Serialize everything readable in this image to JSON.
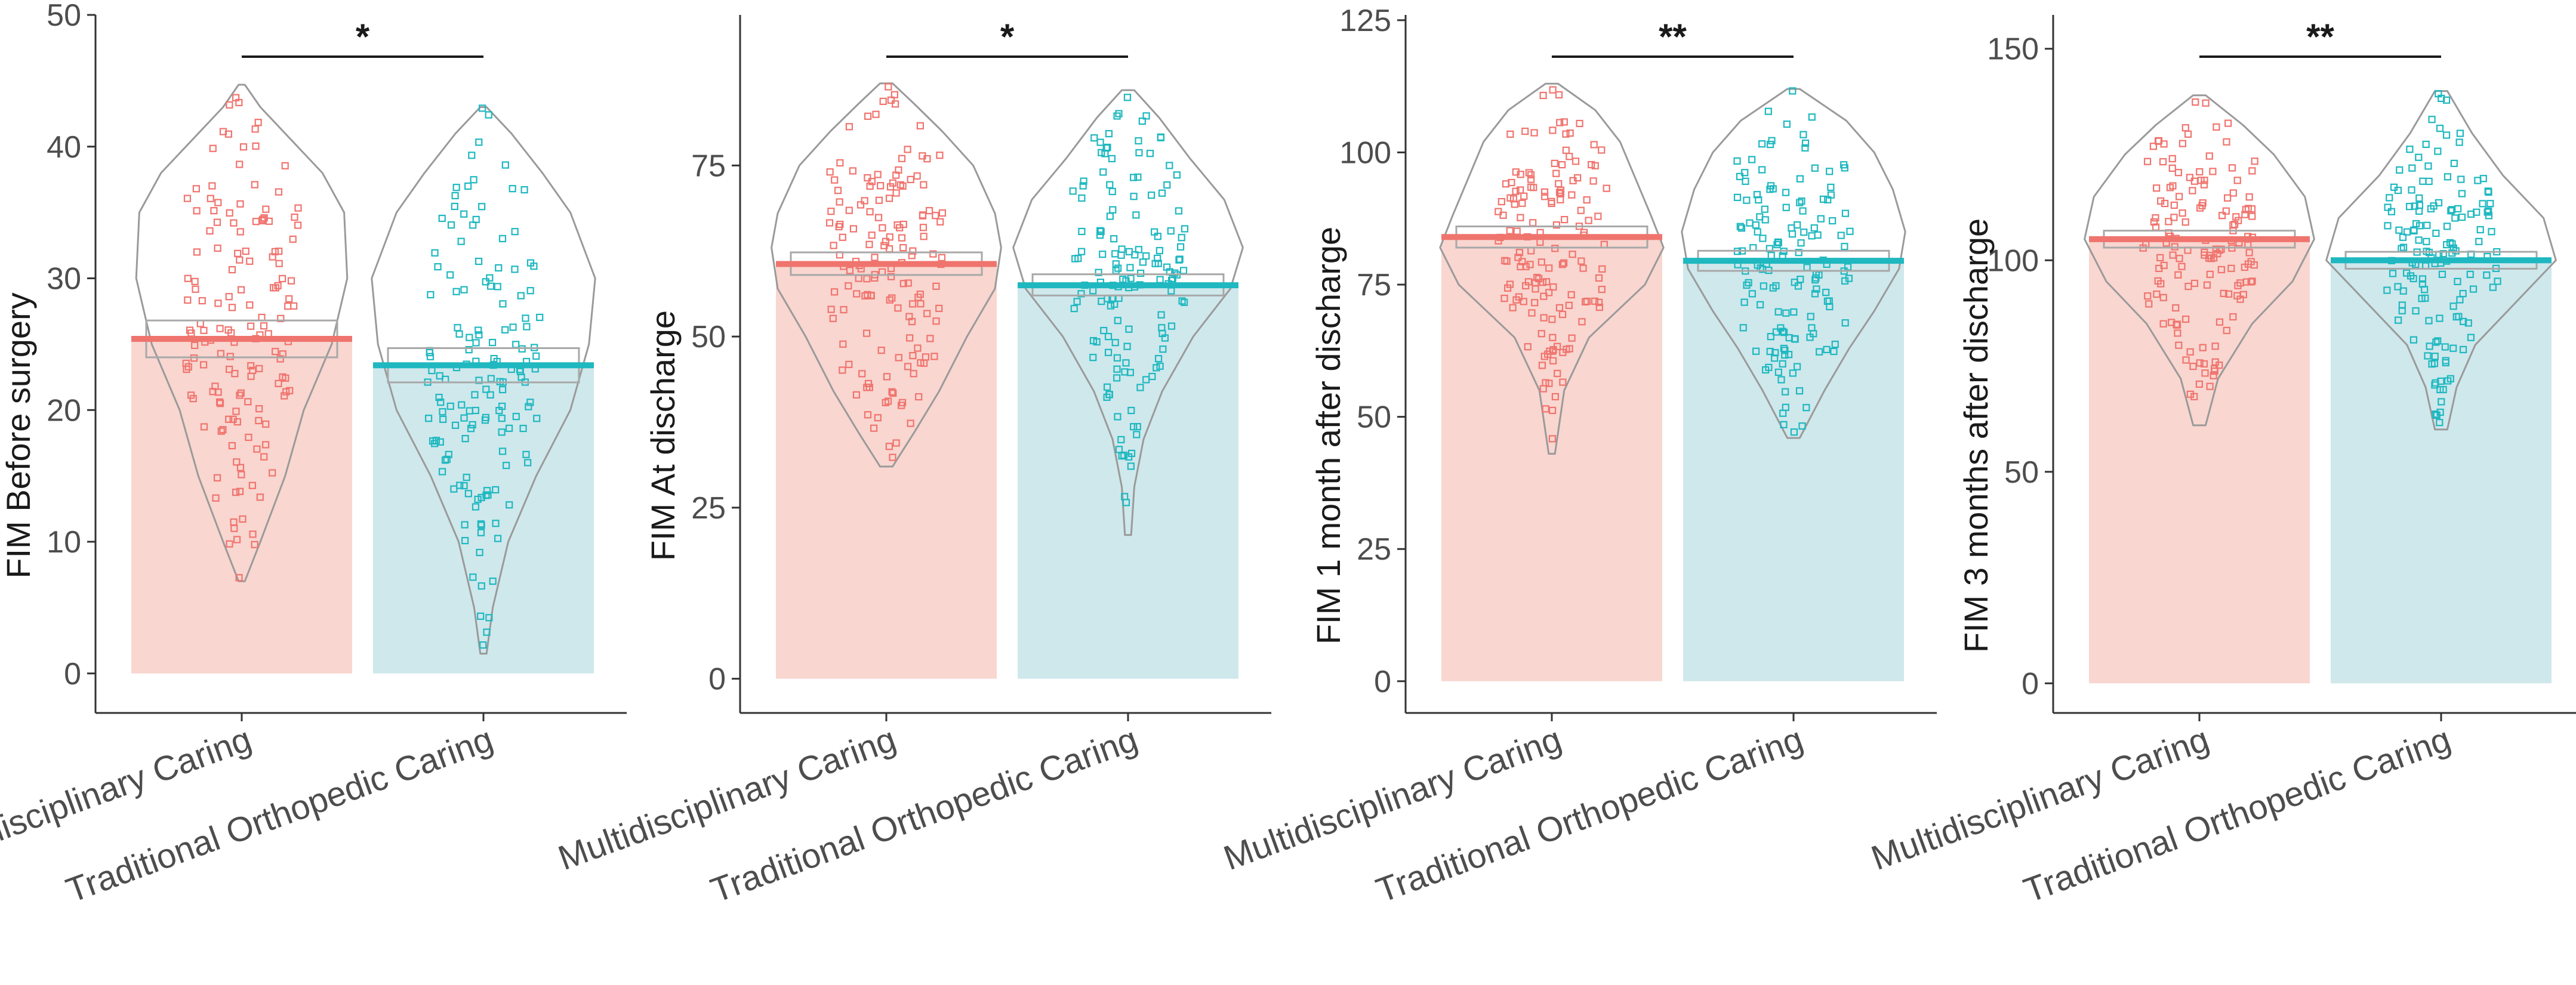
{
  "colors": {
    "group1": "#f0746e",
    "group1_fill": "#f9d6d0",
    "group2": "#1fb8c0",
    "group2_fill": "#cfe8ec",
    "violin": "#9a9a9a",
    "axis": "#333333"
  },
  "chart_data": [
    {
      "type": "bar",
      "ylabel": "FIM Before surgery",
      "categories": [
        "Multidisciplinary Caring",
        "Traditional Orthopedic Caring"
      ],
      "means": [
        25.4,
        23.4
      ],
      "ci_low": [
        24.0,
        22.1
      ],
      "ci_high": [
        26.8,
        24.7
      ],
      "ylim": [
        -3,
        50
      ],
      "yticks": [
        0,
        10,
        20,
        30,
        40,
        50
      ],
      "ytick_labels": [
        "0",
        "10",
        "20",
        "30",
        "40",
        "50"
      ],
      "point_range": [
        [
          7,
          44.7
        ],
        [
          1.5,
          43
        ]
      ],
      "significance": "*",
      "violin": [
        [
          [
            7,
            1
          ],
          [
            10,
            6
          ],
          [
            15,
            14
          ],
          [
            20,
            20
          ],
          [
            25,
            29
          ],
          [
            30,
            34
          ],
          [
            35,
            33
          ],
          [
            38,
            26
          ],
          [
            41,
            14
          ],
          [
            43,
            6
          ],
          [
            44.7,
            1
          ]
        ],
        [
          [
            1.5,
            1
          ],
          [
            5,
            3
          ],
          [
            10,
            8
          ],
          [
            15,
            17
          ],
          [
            20,
            28
          ],
          [
            25,
            34
          ],
          [
            30,
            36
          ],
          [
            35,
            28
          ],
          [
            38,
            19
          ],
          [
            41,
            9
          ],
          [
            43,
            1
          ]
        ]
      ]
    },
    {
      "type": "bar",
      "ylabel": "FIM At discharge",
      "categories": [
        "Multidisciplinary Caring",
        "Traditional Orthopedic Caring"
      ],
      "means": [
        60.6,
        57.5
      ],
      "ci_low": [
        59.0,
        56.0
      ],
      "ci_high": [
        62.3,
        59.1
      ],
      "ylim": [
        -5,
        97
      ],
      "yticks": [
        0,
        25,
        50,
        75
      ],
      "ytick_labels": [
        "0",
        "25",
        "50",
        "75"
      ],
      "point_range": [
        [
          31,
          87
        ],
        [
          21,
          86
        ]
      ],
      "significance": "*",
      "violin": [
        [
          [
            31,
            2
          ],
          [
            36,
            9
          ],
          [
            42,
            17
          ],
          [
            50,
            26
          ],
          [
            57,
            35
          ],
          [
            63,
            37
          ],
          [
            68,
            35
          ],
          [
            75,
            28
          ],
          [
            80,
            18
          ],
          [
            84,
            9
          ],
          [
            87,
            2
          ]
        ],
        [
          [
            21,
            1
          ],
          [
            28,
            2
          ],
          [
            35,
            5
          ],
          [
            42,
            11
          ],
          [
            50,
            21
          ],
          [
            57,
            33
          ],
          [
            63,
            37
          ],
          [
            70,
            31
          ],
          [
            76,
            20
          ],
          [
            82,
            10
          ],
          [
            86,
            2
          ]
        ]
      ]
    },
    {
      "type": "bar",
      "ylabel": "FIM 1 month after discharge",
      "categories": [
        "Multidisciplinary Caring",
        "Traditional Orthopedic Caring"
      ],
      "means": [
        84.0,
        79.5
      ],
      "ci_low": [
        82.0,
        77.6
      ],
      "ci_high": [
        86.0,
        81.4
      ],
      "ylim": [
        -6,
        126
      ],
      "yticks": [
        0,
        25,
        50,
        75,
        100,
        125
      ],
      "ytick_labels": [
        "0",
        "25",
        "50",
        "75",
        "100",
        "125"
      ],
      "point_range": [
        [
          43,
          113
        ],
        [
          46,
          112
        ]
      ],
      "significance": "**",
      "violin": [
        [
          [
            43,
            1
          ],
          [
            55,
            4
          ],
          [
            65,
            12
          ],
          [
            75,
            30
          ],
          [
            82,
            36
          ],
          [
            88,
            32
          ],
          [
            95,
            27
          ],
          [
            102,
            22
          ],
          [
            108,
            14
          ],
          [
            113,
            2
          ]
        ],
        [
          [
            46,
            2
          ],
          [
            55,
            10
          ],
          [
            63,
            18
          ],
          [
            70,
            26
          ],
          [
            78,
            34
          ],
          [
            85,
            36
          ],
          [
            93,
            32
          ],
          [
            100,
            26
          ],
          [
            106,
            17
          ],
          [
            112,
            2
          ]
        ]
      ]
    },
    {
      "type": "bar",
      "ylabel": "FIM 3 months after discharge",
      "categories": [
        "Multidisciplinary Caring",
        "Traditional Orthopedic Caring"
      ],
      "means": [
        105.0,
        100.0
      ],
      "ci_low": [
        103.0,
        98.0
      ],
      "ci_high": [
        107.0,
        102.0
      ],
      "ylim": [
        -7,
        158
      ],
      "yticks": [
        0,
        50,
        100,
        150
      ],
      "ytick_labels": [
        "0",
        "50",
        "100",
        "150"
      ],
      "point_range": [
        [
          61,
          139
        ],
        [
          60,
          140
        ]
      ],
      "significance": "**",
      "violin": [
        [
          [
            61,
            2
          ],
          [
            72,
            6
          ],
          [
            85,
            17
          ],
          [
            95,
            30
          ],
          [
            105,
            37
          ],
          [
            115,
            34
          ],
          [
            125,
            24
          ],
          [
            132,
            14
          ],
          [
            139,
            2
          ]
        ],
        [
          [
            60,
            2
          ],
          [
            70,
            5
          ],
          [
            80,
            11
          ],
          [
            90,
            24
          ],
          [
            100,
            37
          ],
          [
            110,
            33
          ],
          [
            120,
            20
          ],
          [
            130,
            10
          ],
          [
            140,
            2
          ]
        ]
      ]
    }
  ]
}
